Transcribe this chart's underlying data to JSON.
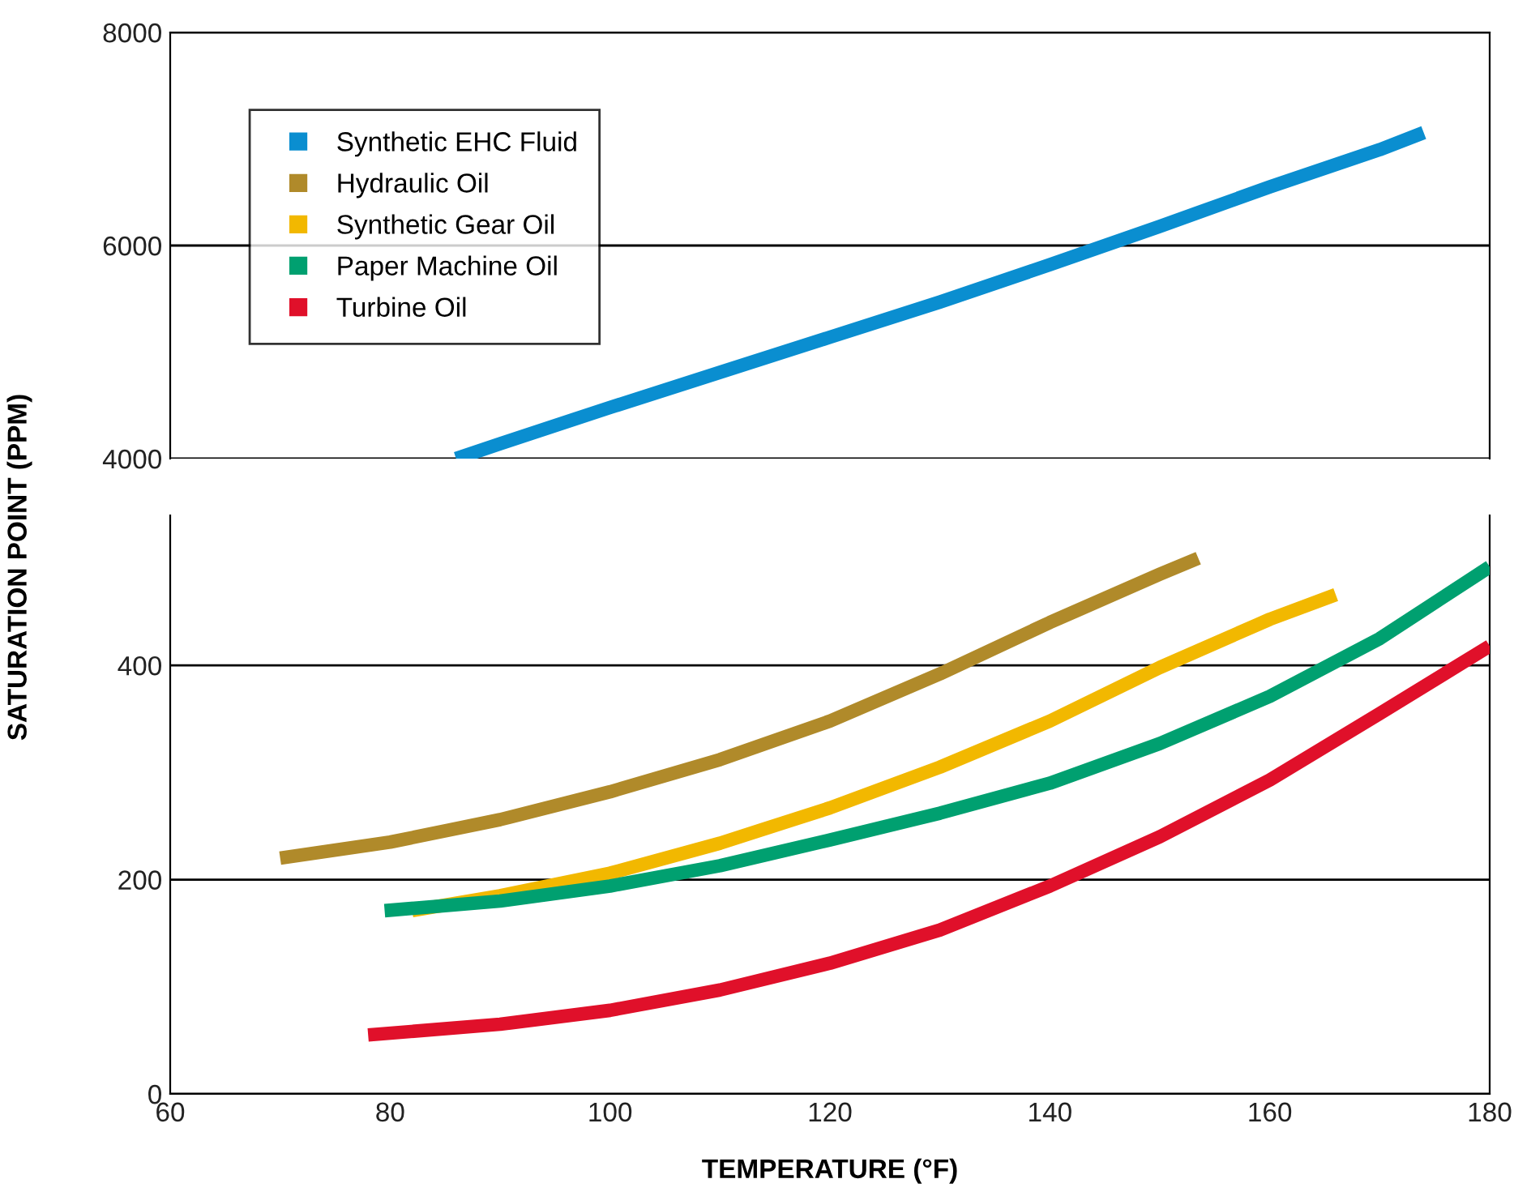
{
  "chart_data": [
    {
      "type": "line",
      "ylabel": "SATURATION POINT (PPM)",
      "xlim": [
        60,
        180
      ],
      "ylim": [
        4000,
        8000
      ],
      "yticks": [
        4000,
        6000,
        8000
      ],
      "tick_labels": "y",
      "grid": "y",
      "legend": "top left",
      "marker": "none",
      "line_style": "solid",
      "series": [
        {
          "name": "Synthetic EHC Fluid",
          "color": "#0a8ed0",
          "x": [
            86,
            90,
            100,
            110,
            120,
            130,
            140,
            150,
            160,
            170,
            174
          ],
          "values": [
            4000,
            4140,
            4480,
            4810,
            5140,
            5470,
            5820,
            6180,
            6550,
            6900,
            7060
          ]
        },
        {
          "name": "Hydraulic Oil",
          "color": "#b08a2a"
        },
        {
          "name": "Synthetic Gear Oil",
          "color": "#f2b800"
        },
        {
          "name": "Paper Machine Oil",
          "color": "#00a070"
        },
        {
          "name": "Turbine Oil",
          "color": "#e0102a"
        }
      ]
    },
    {
      "type": "line",
      "xlabel": "TEMPERATURE (°F)",
      "xlim": [
        60,
        180
      ],
      "xticks": [
        60,
        80,
        100,
        120,
        140,
        160,
        180
      ],
      "ylim": [
        0,
        540
      ],
      "yticks": [
        0,
        200,
        400
      ],
      "grid": "y",
      "marker": "none",
      "line_style": "solid",
      "series": [
        {
          "color": "#b08a2a",
          "x": [
            70,
            80,
            90,
            100,
            110,
            120,
            130,
            140,
            150,
            153.5
          ],
          "values": [
            220,
            235,
            256,
            282,
            312,
            348,
            392,
            440,
            485,
            500
          ]
        },
        {
          "color": "#f2b800",
          "x": [
            82,
            90,
            100,
            110,
            120,
            130,
            140,
            150,
            160,
            166
          ],
          "values": [
            171,
            185,
            206,
            234,
            267,
            305,
            348,
            398,
            443,
            466
          ]
        },
        {
          "color": "#00a070",
          "x": [
            79.5,
            90,
            100,
            110,
            120,
            130,
            140,
            150,
            160,
            170,
            180
          ],
          "values": [
            171,
            180,
            194,
            213,
            237,
            262,
            290,
            327,
            371,
            425,
            492
          ]
        },
        {
          "color": "#e0102a",
          "x": [
            78,
            90,
            100,
            110,
            120,
            130,
            140,
            150,
            160,
            170,
            180
          ],
          "values": [
            55,
            65,
            78,
            97,
            122,
            153,
            194,
            240,
            293,
            355,
            418
          ]
        }
      ]
    }
  ]
}
